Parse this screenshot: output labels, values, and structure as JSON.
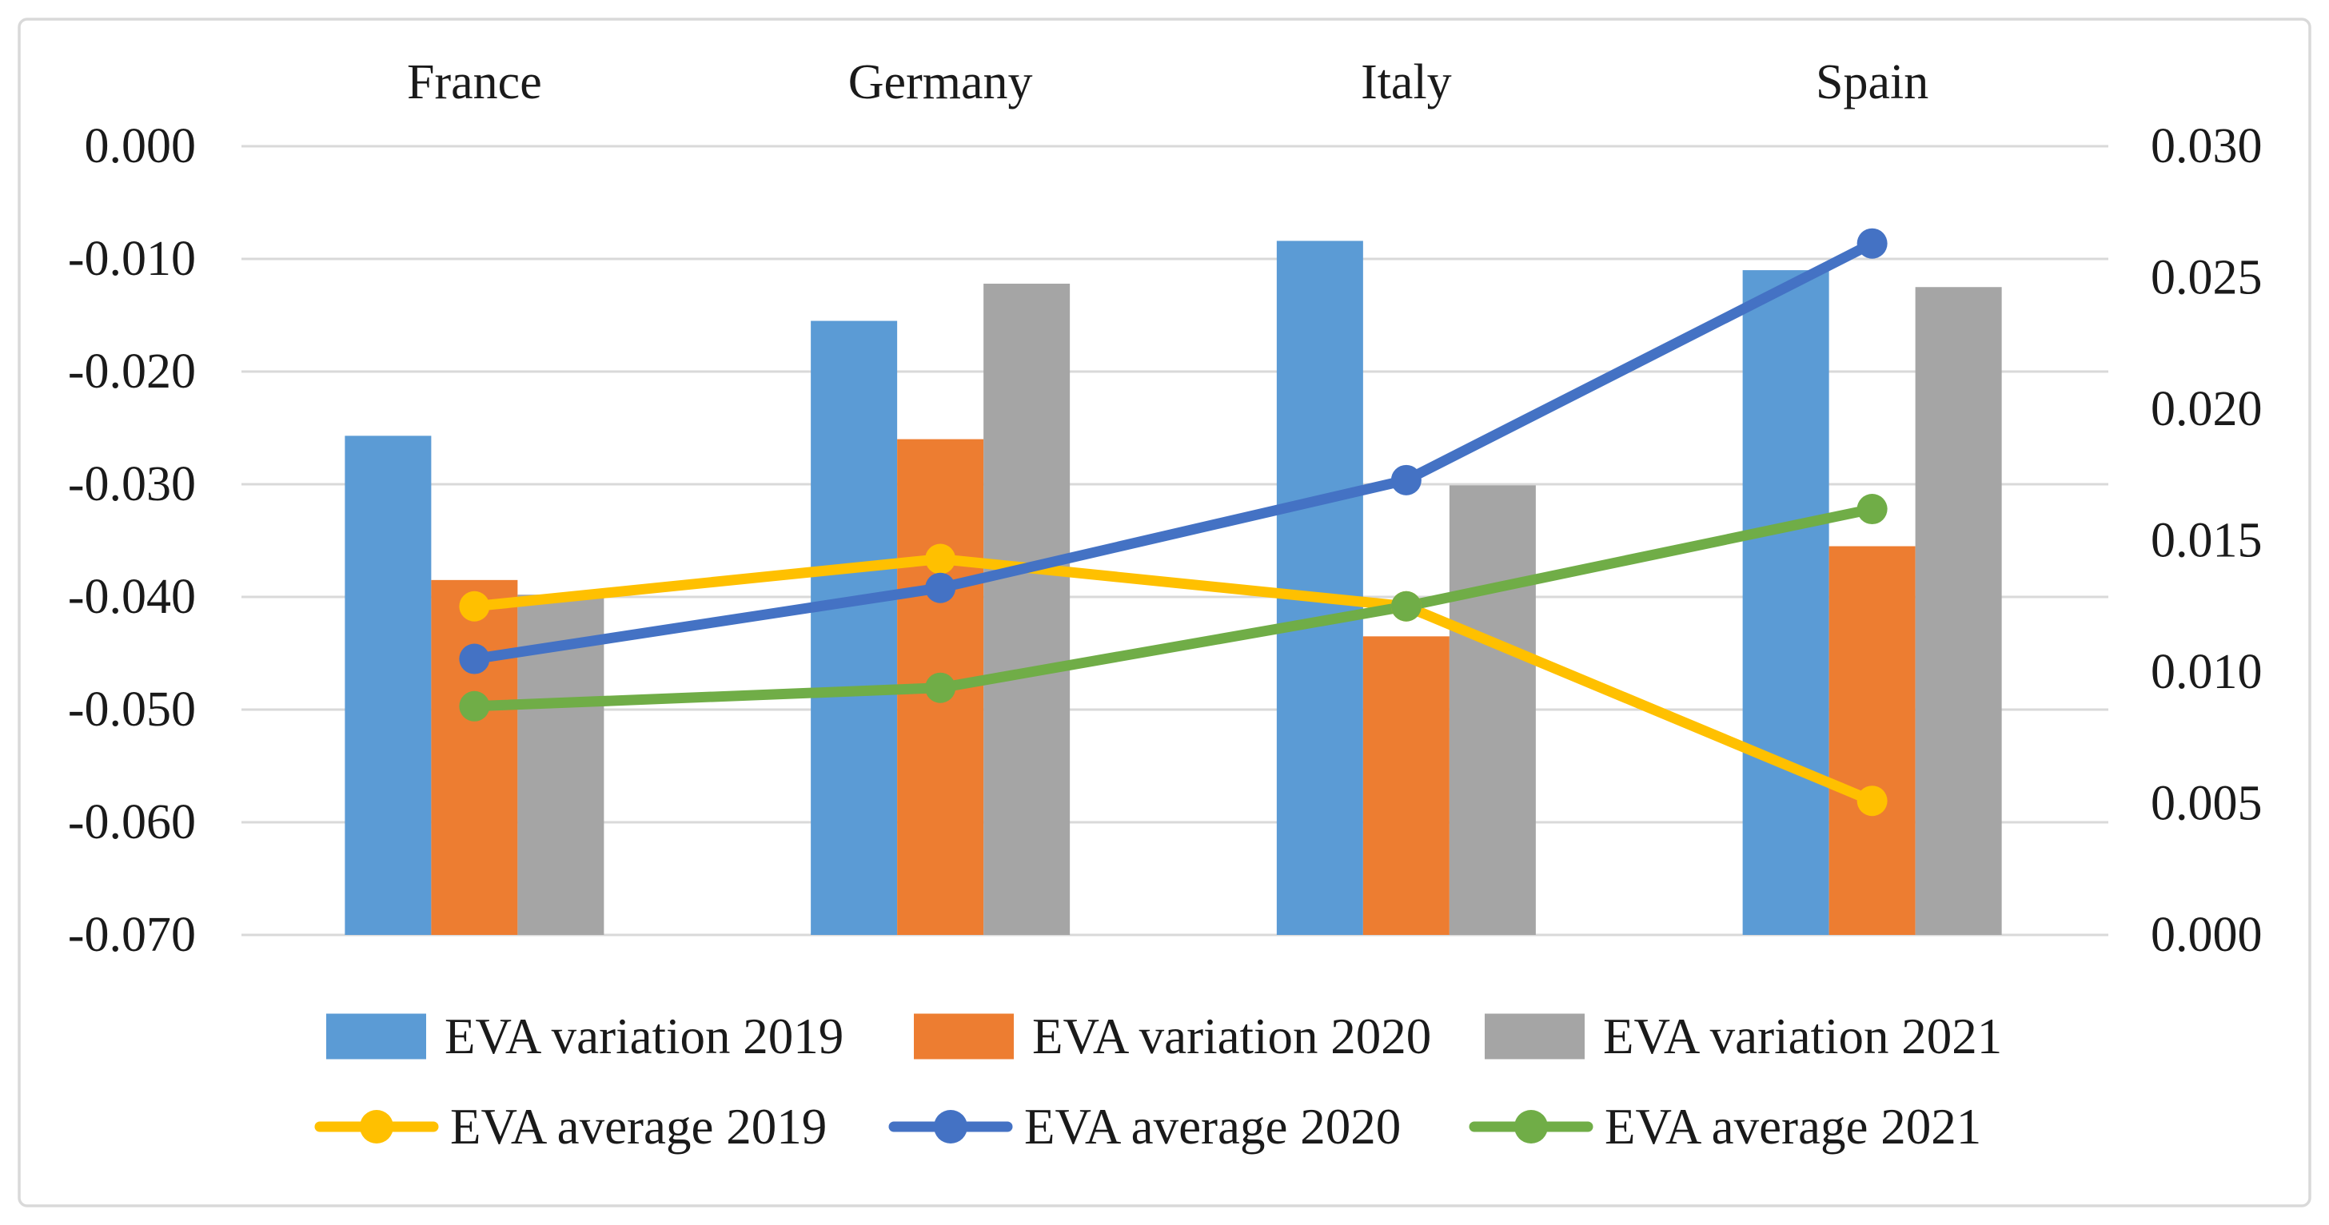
{
  "chart_data": {
    "type": "bar",
    "subtype": "combo-bar-line-dual-axis",
    "title": "",
    "categories": [
      "France",
      "Germany",
      "Italy",
      "Spain"
    ],
    "bar_series": [
      {
        "name": "EVA variation 2019",
        "color": "#5B9BD5",
        "axis": "left",
        "values": [
          -0.0257,
          -0.0155,
          -0.0084,
          -0.011
        ]
      },
      {
        "name": "EVA variation 2020",
        "color": "#ED7D31",
        "axis": "left",
        "values": [
          -0.0385,
          -0.026,
          -0.0435,
          -0.0355
        ]
      },
      {
        "name": "EVA variation 2021",
        "color": "#A5A5A5",
        "axis": "left",
        "values": [
          -0.0398,
          -0.0122,
          -0.0301,
          -0.0125
        ]
      }
    ],
    "line_series": [
      {
        "name": "EVA average 2019",
        "color": "#FFC000",
        "axis": "right",
        "values": [
          0.0125,
          0.0143,
          0.0125,
          0.0051
        ]
      },
      {
        "name": "EVA average 2020",
        "color": "#4472C4",
        "axis": "right",
        "values": [
          0.0105,
          0.0132,
          0.0173,
          0.0263
        ]
      },
      {
        "name": "EVA average 2021",
        "color": "#70AD47",
        "axis": "right",
        "values": [
          0.0087,
          0.0094,
          0.0125,
          0.0162
        ]
      }
    ],
    "left_axis": {
      "min": -0.07,
      "max": 0.0,
      "tick_labels": [
        "0.000",
        "-0.010",
        "-0.020",
        "-0.030",
        "-0.040",
        "-0.050",
        "-0.060",
        "-0.070"
      ]
    },
    "right_axis": {
      "min": 0.0,
      "max": 0.03,
      "tick_labels": [
        "0.030",
        "0.025",
        "0.020",
        "0.015",
        "0.010",
        "0.005",
        "0.000"
      ]
    },
    "grid": true,
    "legend_position": "bottom",
    "legend_rows": [
      [
        "EVA variation 2019",
        "EVA variation 2020",
        "EVA variation 2021"
      ],
      [
        "EVA average 2019",
        "EVA average 2020",
        "EVA average 2021"
      ]
    ],
    "colors": {
      "gridline": "#D9D9D9",
      "frame_border": "#D9D9D9",
      "text": "#1a1a1a",
      "background": "#FFFFFF"
    }
  }
}
